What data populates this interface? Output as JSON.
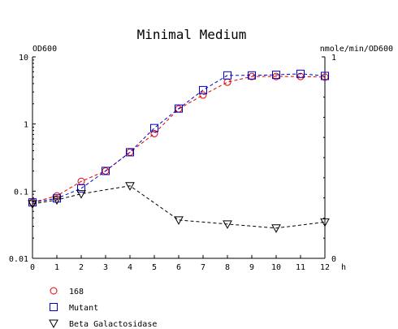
{
  "chart_data": {
    "type": "line",
    "title": "Minimal Medium",
    "xlabel": "h",
    "ylabel_left": "OD600",
    "ylabel_right": "nmole/min/OD600",
    "x": [
      0,
      1,
      2,
      3,
      4,
      5,
      6,
      7,
      8,
      9,
      10,
      11,
      12
    ],
    "x_ticks": [
      "0",
      "1",
      "2",
      "3",
      "4",
      "5",
      "6",
      "7",
      "8",
      "9",
      "10",
      "11",
      "12"
    ],
    "xlim": [
      0,
      12
    ],
    "ylim_left": [
      0.01,
      10
    ],
    "y_left_scale": "log",
    "y_left_ticks": [
      {
        "value": 10,
        "label": "10"
      },
      {
        "value": 1,
        "label": "1"
      },
      {
        "value": 0.1,
        "label": "0.1"
      },
      {
        "value": 0.01,
        "label": "0.01"
      }
    ],
    "ylim_right": [
      0,
      1
    ],
    "y_right_ticks": [
      {
        "value": 1,
        "label": "1"
      },
      {
        "value": 0,
        "label": "0"
      }
    ],
    "grid": false,
    "legend_position": "bottom-left",
    "series": [
      {
        "name": "168",
        "axis": "left",
        "color": "#e00000",
        "marker": "circle",
        "dash": "4,3",
        "x": [
          0,
          1,
          2,
          3,
          4,
          5,
          6,
          7,
          8,
          9,
          10,
          11,
          12
        ],
        "y": [
          0.068,
          0.085,
          0.14,
          0.2,
          0.38,
          0.72,
          1.68,
          2.7,
          4.2,
          5.1,
          5.1,
          5.1,
          5.0
        ]
      },
      {
        "name": "Mutant",
        "axis": "left",
        "color": "#0000cc",
        "marker": "square",
        "dash": "4,3",
        "x": [
          0,
          1,
          2,
          3,
          4,
          5,
          6,
          7,
          8,
          9,
          10,
          11,
          12
        ],
        "y": [
          0.068,
          0.078,
          0.11,
          0.2,
          0.38,
          0.87,
          1.7,
          3.2,
          5.3,
          5.3,
          5.4,
          5.6,
          5.2
        ]
      },
      {
        "name": "Beta Galactosidase",
        "axis": "right",
        "color": "#000000",
        "marker": "triangle-down",
        "dash": "4,3",
        "x": [
          0,
          1,
          2,
          4,
          6,
          8,
          10,
          12
        ],
        "y": [
          0.27,
          0.29,
          0.32,
          0.36,
          0.19,
          0.17,
          0.15,
          0.18
        ]
      }
    ]
  }
}
